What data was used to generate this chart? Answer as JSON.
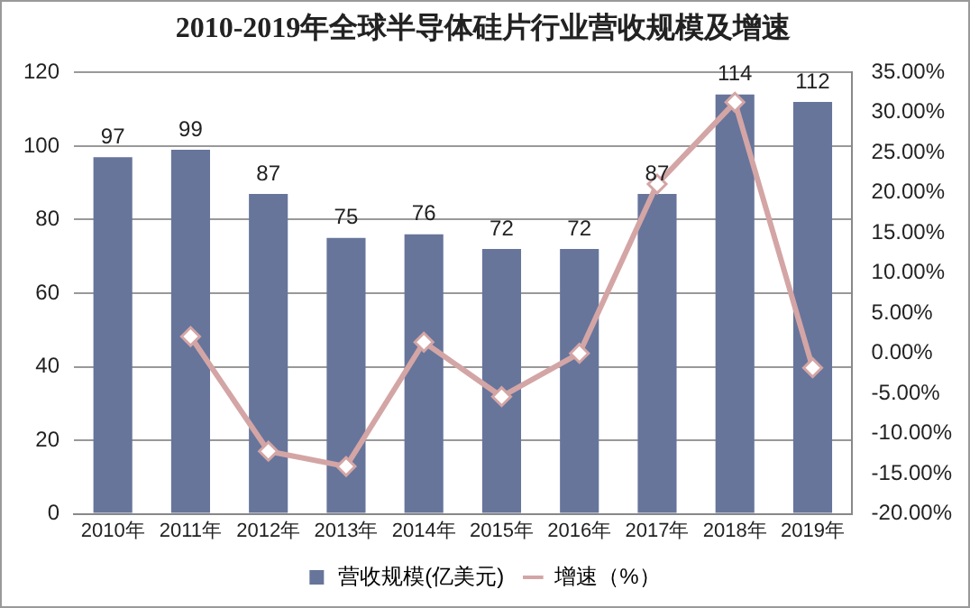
{
  "chart_data": {
    "type": "bar",
    "title": "2010-2019年全球半导体硅片行业营收规模及增速",
    "categories": [
      "2010年",
      "2011年",
      "2012年",
      "2013年",
      "2014年",
      "2015年",
      "2016年",
      "2017年",
      "2018年",
      "2019年"
    ],
    "series": [
      {
        "name": "营收规模(亿美元)",
        "color": "#67759b",
        "values": [
          97,
          99,
          87,
          75,
          76,
          72,
          72,
          87,
          114,
          112
        ],
        "value_labels": [
          "97",
          "99",
          "87",
          "75",
          "76",
          "72",
          "72",
          "87",
          "114",
          "112"
        ]
      },
      {
        "name": "增速（%）",
        "type": "line",
        "axis": "y2",
        "color": "#d4a5a5",
        "marker": "diamond",
        "values": [
          null,
          2.1,
          -12.2,
          -14.1,
          1.4,
          -5.4,
          0,
          21.1,
          31.3,
          -1.8
        ]
      }
    ],
    "ylim": [
      0,
      120
    ],
    "yticks": [
      0,
      20,
      40,
      60,
      80,
      100,
      120
    ],
    "y2lim": [
      -20,
      35
    ],
    "y2ticks": [
      {
        "value": -20,
        "label": "-20.00%"
      },
      {
        "value": -15,
        "label": "-15.00%"
      },
      {
        "value": -10,
        "label": "-10.00%"
      },
      {
        "value": -5,
        "label": "-5.00%"
      },
      {
        "value": 0,
        "label": "0.00%"
      },
      {
        "value": 5,
        "label": "5.00%"
      },
      {
        "value": 10,
        "label": "10.00%"
      },
      {
        "value": 15,
        "label": "15.00%"
      },
      {
        "value": 20,
        "label": "20.00%"
      },
      {
        "value": 25,
        "label": "25.00%"
      },
      {
        "value": 30,
        "label": "30.00%"
      },
      {
        "value": 35,
        "label": "35.00%"
      }
    ],
    "grid": "y",
    "legend": "bottom"
  }
}
